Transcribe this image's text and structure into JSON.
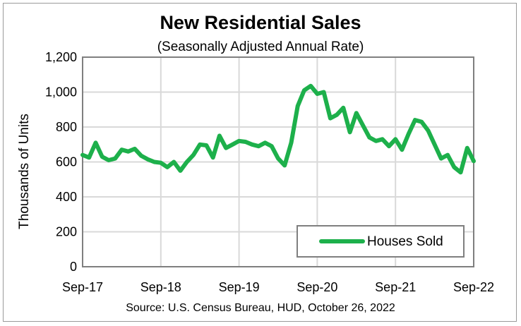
{
  "chart_data": {
    "type": "line",
    "title": "New Residential Sales",
    "subtitle": "(Seasonally Adjusted Annual Rate)",
    "ylabel": "Thousands of Units",
    "xlabel": "",
    "source": "Source:  U.S. Census Bureau, HUD, October 26, 2022",
    "ylim": [
      0,
      1200
    ],
    "yticks": [
      "0",
      "200",
      "400",
      "600",
      "800",
      "1,000",
      "1,200"
    ],
    "ytick_values": [
      0,
      200,
      400,
      600,
      800,
      1000,
      1200
    ],
    "xticks": [
      "Sep-17",
      "Sep-18",
      "Sep-19",
      "Sep-20",
      "Sep-21",
      "Sep-22"
    ],
    "xtick_index": [
      0,
      12,
      24,
      36,
      48,
      60
    ],
    "grid": true,
    "legend": "bottom-right",
    "colors": {
      "series": "#1db04b",
      "grid": "#d9d9d9",
      "axis": "#7f7f7f"
    },
    "x": [
      "Sep-17",
      "Oct-17",
      "Nov-17",
      "Dec-17",
      "Jan-18",
      "Feb-18",
      "Mar-18",
      "Apr-18",
      "May-18",
      "Jun-18",
      "Jul-18",
      "Aug-18",
      "Sep-18",
      "Oct-18",
      "Nov-18",
      "Dec-18",
      "Jan-19",
      "Feb-19",
      "Mar-19",
      "Apr-19",
      "May-19",
      "Jun-19",
      "Jul-19",
      "Aug-19",
      "Sep-19",
      "Oct-19",
      "Nov-19",
      "Dec-19",
      "Jan-20",
      "Feb-20",
      "Mar-20",
      "Apr-20",
      "May-20",
      "Jun-20",
      "Jul-20",
      "Aug-20",
      "Sep-20",
      "Oct-20",
      "Nov-20",
      "Dec-20",
      "Jan-21",
      "Feb-21",
      "Mar-21",
      "Apr-21",
      "May-21",
      "Jun-21",
      "Jul-21",
      "Aug-21",
      "Sep-21",
      "Oct-21",
      "Nov-21",
      "Dec-21",
      "Jan-22",
      "Feb-22",
      "Mar-22",
      "Apr-22",
      "May-22",
      "Jun-22",
      "Jul-22",
      "Aug-22",
      "Sep-22"
    ],
    "series": [
      {
        "name": "Houses Sold",
        "values": [
          640,
          625,
          710,
          630,
          610,
          620,
          670,
          660,
          675,
          635,
          615,
          600,
          595,
          570,
          600,
          550,
          600,
          640,
          700,
          695,
          625,
          750,
          680,
          700,
          720,
          715,
          700,
          690,
          710,
          690,
          620,
          580,
          710,
          920,
          1010,
          1035,
          990,
          1000,
          850,
          870,
          910,
          770,
          880,
          810,
          740,
          720,
          730,
          690,
          730,
          670,
          760,
          840,
          830,
          780,
          700,
          620,
          640,
          570,
          540,
          680,
          605
        ]
      }
    ]
  }
}
